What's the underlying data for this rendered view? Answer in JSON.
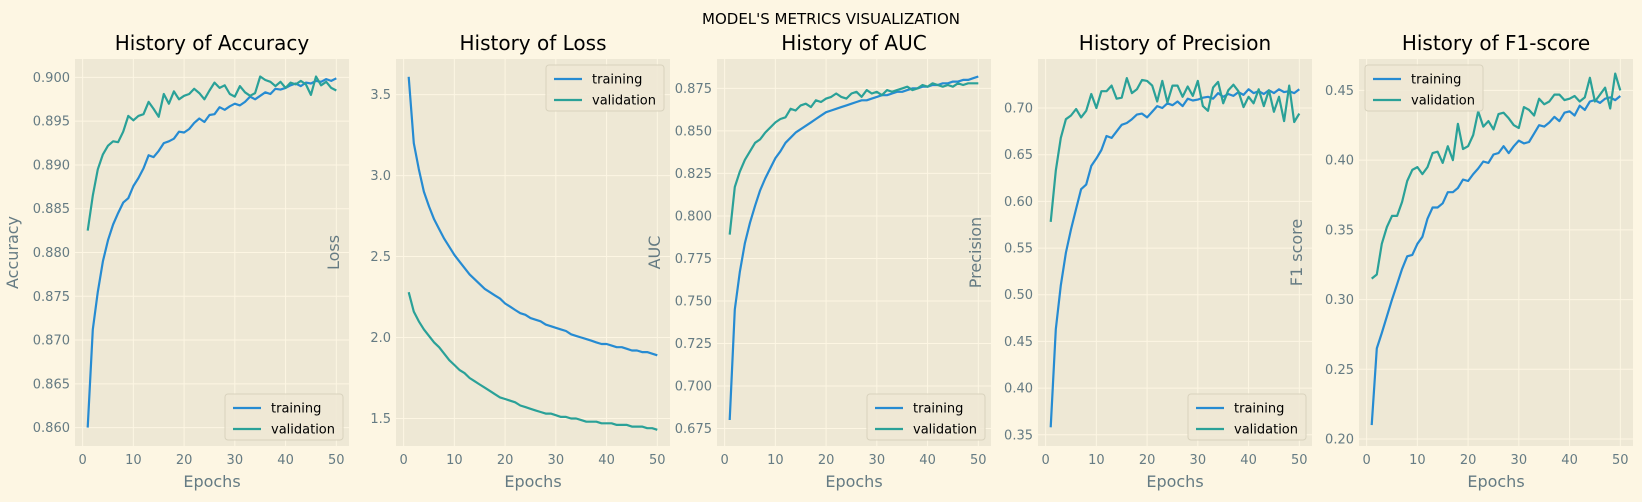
{
  "figure": {
    "suptitle": "MODEL'S METRICS VISUALIZATION",
    "colors": {
      "background": "#fdf6e3",
      "axes_face": "#eee8d5",
      "grid": "#fdf6e3",
      "tick_text": "#657b83",
      "training": "#268bd2",
      "validation": "#2aa198"
    }
  },
  "chart_data": [
    {
      "type": "line",
      "title": "History of Accuracy",
      "xlabel": "Epochs",
      "ylabel": "Accuracy",
      "xlim": [
        -1.5,
        52.5
      ],
      "ylim": [
        0.8579,
        0.9021
      ],
      "xticks": [
        0,
        10,
        20,
        30,
        40,
        50
      ],
      "yticks": [
        0.86,
        0.865,
        0.87,
        0.875,
        0.88,
        0.885,
        0.89,
        0.895,
        0.9
      ],
      "ytick_labels": [
        "0.860",
        "0.865",
        "0.870",
        "0.875",
        "0.880",
        "0.885",
        "0.890",
        "0.895",
        "0.900"
      ],
      "legend_position": "lower-right",
      "grid": true,
      "series": [
        {
          "name": "training",
          "x_start": 1,
          "values": [
            0.86,
            0.8712,
            0.8755,
            0.879,
            0.8814,
            0.8832,
            0.8845,
            0.8857,
            0.8862,
            0.8876,
            0.8885,
            0.8896,
            0.8911,
            0.8909,
            0.8916,
            0.8925,
            0.8927,
            0.893,
            0.8938,
            0.8937,
            0.8941,
            0.8948,
            0.8953,
            0.8949,
            0.8957,
            0.8958,
            0.8966,
            0.8963,
            0.8967,
            0.897,
            0.8968,
            0.8972,
            0.8978,
            0.8975,
            0.8979,
            0.8983,
            0.8981,
            0.8987,
            0.8986,
            0.8988,
            0.8991,
            0.8993,
            0.899,
            0.8994,
            0.8993,
            0.8996,
            0.8995,
            0.8998,
            0.8996,
            0.8999
          ]
        },
        {
          "name": "validation",
          "x_start": 1,
          "values": [
            0.8825,
            0.8865,
            0.8895,
            0.8912,
            0.8922,
            0.8927,
            0.8926,
            0.8938,
            0.8956,
            0.8951,
            0.8956,
            0.8958,
            0.8972,
            0.8964,
            0.8955,
            0.8981,
            0.897,
            0.8984,
            0.8975,
            0.8979,
            0.8981,
            0.8987,
            0.8982,
            0.8975,
            0.8985,
            0.8994,
            0.8988,
            0.8991,
            0.8981,
            0.8978,
            0.899,
            0.8983,
            0.8979,
            0.8982,
            0.9001,
            0.8997,
            0.8995,
            0.899,
            0.8995,
            0.8988,
            0.8994,
            0.8992,
            0.8996,
            0.8992,
            0.898,
            0.9001,
            0.8991,
            0.8995,
            0.8988,
            0.8985
          ]
        }
      ]
    },
    {
      "type": "line",
      "title": "History of Loss",
      "xlabel": "Epochs",
      "ylabel": "Loss",
      "xlim": [
        -1.5,
        52.5
      ],
      "ylim": [
        1.33,
        3.72
      ],
      "xticks": [
        0,
        10,
        20,
        30,
        40,
        50
      ],
      "yticks": [
        1.5,
        2.0,
        2.5,
        3.0,
        3.5
      ],
      "ytick_labels": [
        "1.5",
        "2.0",
        "2.5",
        "3.0",
        "3.5"
      ],
      "legend_position": "upper-right",
      "grid": true,
      "series": [
        {
          "name": "training",
          "x_start": 1,
          "values": [
            3.61,
            3.2,
            3.04,
            2.9,
            2.81,
            2.73,
            2.67,
            2.61,
            2.56,
            2.51,
            2.47,
            2.43,
            2.39,
            2.36,
            2.33,
            2.3,
            2.28,
            2.26,
            2.24,
            2.21,
            2.19,
            2.17,
            2.15,
            2.14,
            2.12,
            2.11,
            2.1,
            2.08,
            2.07,
            2.06,
            2.05,
            2.04,
            2.02,
            2.01,
            2.0,
            1.99,
            1.98,
            1.97,
            1.96,
            1.96,
            1.95,
            1.94,
            1.94,
            1.93,
            1.92,
            1.92,
            1.91,
            1.91,
            1.9,
            1.89
          ]
        },
        {
          "name": "validation",
          "x_start": 1,
          "values": [
            2.28,
            2.16,
            2.1,
            2.05,
            2.01,
            1.97,
            1.94,
            1.9,
            1.86,
            1.83,
            1.8,
            1.78,
            1.75,
            1.73,
            1.71,
            1.69,
            1.67,
            1.65,
            1.63,
            1.62,
            1.61,
            1.6,
            1.58,
            1.57,
            1.56,
            1.55,
            1.54,
            1.53,
            1.53,
            1.52,
            1.51,
            1.51,
            1.5,
            1.5,
            1.49,
            1.48,
            1.48,
            1.48,
            1.47,
            1.47,
            1.47,
            1.46,
            1.46,
            1.46,
            1.45,
            1.45,
            1.45,
            1.44,
            1.44,
            1.43
          ]
        }
      ]
    },
    {
      "type": "line",
      "title": "History of AUC",
      "xlabel": "Epochs",
      "ylabel": "AUC",
      "xlim": [
        -1.5,
        52.5
      ],
      "ylim": [
        0.6647,
        0.8923
      ],
      "xticks": [
        0,
        10,
        20,
        30,
        40,
        50
      ],
      "yticks": [
        0.675,
        0.7,
        0.725,
        0.75,
        0.775,
        0.8,
        0.825,
        0.85,
        0.875
      ],
      "ytick_labels": [
        "0.675",
        "0.700",
        "0.725",
        "0.750",
        "0.775",
        "0.800",
        "0.825",
        "0.850",
        "0.875"
      ],
      "legend_position": "lower-right",
      "grid": true,
      "series": [
        {
          "name": "training",
          "x_start": 1,
          "values": [
            0.68,
            0.745,
            0.767,
            0.784,
            0.796,
            0.806,
            0.815,
            0.822,
            0.828,
            0.834,
            0.838,
            0.843,
            0.846,
            0.849,
            0.851,
            0.853,
            0.855,
            0.857,
            0.859,
            0.861,
            0.862,
            0.863,
            0.864,
            0.865,
            0.866,
            0.867,
            0.868,
            0.868,
            0.869,
            0.87,
            0.871,
            0.871,
            0.872,
            0.873,
            0.873,
            0.874,
            0.875,
            0.875,
            0.876,
            0.876,
            0.877,
            0.877,
            0.878,
            0.878,
            0.879,
            0.879,
            0.88,
            0.88,
            0.881,
            0.882
          ]
        },
        {
          "name": "validation",
          "x_start": 1,
          "values": [
            0.789,
            0.817,
            0.826,
            0.833,
            0.838,
            0.843,
            0.845,
            0.849,
            0.852,
            0.855,
            0.857,
            0.858,
            0.863,
            0.862,
            0.865,
            0.866,
            0.864,
            0.868,
            0.867,
            0.869,
            0.87,
            0.872,
            0.87,
            0.869,
            0.872,
            0.873,
            0.87,
            0.874,
            0.872,
            0.873,
            0.871,
            0.874,
            0.873,
            0.874,
            0.875,
            0.876,
            0.874,
            0.875,
            0.877,
            0.876,
            0.878,
            0.877,
            0.876,
            0.877,
            0.876,
            0.878,
            0.877,
            0.878,
            0.878,
            0.878
          ]
        }
      ]
    },
    {
      "type": "line",
      "title": "History of Precision",
      "xlabel": "Epochs",
      "ylabel": "Precision",
      "xlim": [
        -1.5,
        52.5
      ],
      "ylim": [
        0.338,
        0.7525
      ],
      "xticks": [
        0,
        10,
        20,
        30,
        40,
        50
      ],
      "yticks": [
        0.35,
        0.4,
        0.45,
        0.5,
        0.55,
        0.6,
        0.65,
        0.7
      ],
      "ytick_labels": [
        "0.35",
        "0.40",
        "0.45",
        "0.50",
        "0.55",
        "0.60",
        "0.65",
        "0.70"
      ],
      "legend_position": "lower-right",
      "grid": true,
      "series": [
        {
          "name": "training",
          "x_start": 1,
          "values": [
            0.358,
            0.463,
            0.51,
            0.545,
            0.57,
            0.592,
            0.613,
            0.618,
            0.638,
            0.646,
            0.655,
            0.67,
            0.668,
            0.675,
            0.682,
            0.684,
            0.688,
            0.693,
            0.694,
            0.69,
            0.696,
            0.702,
            0.7,
            0.705,
            0.703,
            0.707,
            0.702,
            0.71,
            0.708,
            0.709,
            0.711,
            0.712,
            0.71,
            0.716,
            0.712,
            0.715,
            0.713,
            0.717,
            0.714,
            0.72,
            0.716,
            0.718,
            0.715,
            0.719,
            0.716,
            0.72,
            0.717,
            0.718,
            0.716,
            0.72
          ]
        },
        {
          "name": "validation",
          "x_start": 1,
          "values": [
            0.578,
            0.633,
            0.668,
            0.688,
            0.692,
            0.699,
            0.69,
            0.697,
            0.715,
            0.7,
            0.718,
            0.718,
            0.724,
            0.71,
            0.711,
            0.732,
            0.716,
            0.72,
            0.73,
            0.729,
            0.724,
            0.707,
            0.729,
            0.706,
            0.724,
            0.724,
            0.712,
            0.723,
            0.713,
            0.729,
            0.702,
            0.697,
            0.722,
            0.728,
            0.705,
            0.719,
            0.725,
            0.718,
            0.701,
            0.712,
            0.705,
            0.72,
            0.702,
            0.719,
            0.696,
            0.712,
            0.686,
            0.724,
            0.685,
            0.694
          ]
        }
      ]
    },
    {
      "type": "line",
      "title": "History of F1-score",
      "xlabel": "Epochs",
      "ylabel": "F1 score",
      "xlim": [
        -1.5,
        52.5
      ],
      "ylim": [
        0.195,
        0.4725
      ],
      "xticks": [
        0,
        10,
        20,
        30,
        40,
        50
      ],
      "yticks": [
        0.2,
        0.25,
        0.3,
        0.35,
        0.4,
        0.45
      ],
      "ytick_labels": [
        "0.20",
        "0.25",
        "0.30",
        "0.35",
        "0.40",
        "0.45"
      ],
      "legend_position": "upper-left",
      "grid": true,
      "series": [
        {
          "name": "training",
          "x_start": 1,
          "values": [
            0.21,
            0.265,
            0.276,
            0.288,
            0.3,
            0.311,
            0.322,
            0.331,
            0.332,
            0.34,
            0.345,
            0.358,
            0.366,
            0.366,
            0.369,
            0.377,
            0.377,
            0.38,
            0.386,
            0.385,
            0.39,
            0.394,
            0.399,
            0.398,
            0.404,
            0.405,
            0.41,
            0.405,
            0.41,
            0.414,
            0.412,
            0.413,
            0.419,
            0.425,
            0.424,
            0.427,
            0.431,
            0.428,
            0.434,
            0.435,
            0.432,
            0.439,
            0.436,
            0.442,
            0.443,
            0.441,
            0.444,
            0.445,
            0.443,
            0.446
          ]
        },
        {
          "name": "validation",
          "x_start": 1,
          "values": [
            0.315,
            0.318,
            0.34,
            0.352,
            0.36,
            0.36,
            0.37,
            0.385,
            0.393,
            0.395,
            0.39,
            0.395,
            0.405,
            0.406,
            0.398,
            0.41,
            0.4,
            0.426,
            0.408,
            0.41,
            0.418,
            0.435,
            0.424,
            0.428,
            0.422,
            0.433,
            0.434,
            0.43,
            0.425,
            0.423,
            0.438,
            0.436,
            0.432,
            0.444,
            0.44,
            0.442,
            0.447,
            0.447,
            0.443,
            0.444,
            0.446,
            0.442,
            0.445,
            0.459,
            0.442,
            0.447,
            0.452,
            0.437,
            0.462,
            0.45
          ]
        }
      ]
    }
  ]
}
